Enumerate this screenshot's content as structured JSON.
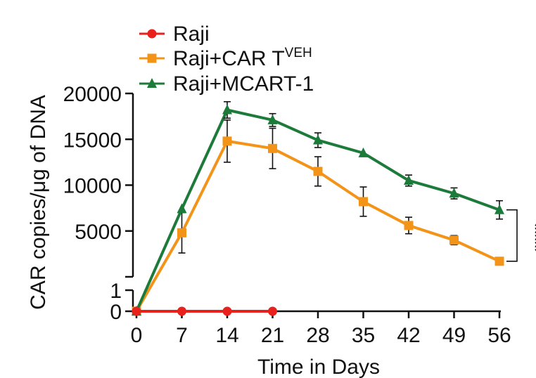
{
  "chart_data": {
    "type": "line",
    "title": "",
    "xlabel": "Time in Days",
    "ylabel": "CAR copies/μg of DNA",
    "x": [
      0,
      7,
      14,
      21,
      28,
      35,
      42,
      49,
      56
    ],
    "xticks": [
      "0",
      "7",
      "14",
      "21",
      "28",
      "35",
      "42",
      "49",
      "56"
    ],
    "yticks_upper": [
      "5000",
      "10000",
      "15000",
      "20000"
    ],
    "yticks_lower": [
      "0",
      "1"
    ],
    "ylim_upper": [
      0,
      20000
    ],
    "ylim_lower": [
      0,
      1
    ],
    "annotation": "****",
    "series": [
      {
        "name": "Raji",
        "name_base": "Raji",
        "name_sup": "",
        "color": "#e8211d",
        "marker": "circle",
        "x": [
          0,
          7,
          14,
          21
        ],
        "values": [
          0,
          0,
          0,
          0
        ],
        "errors": [
          0,
          0,
          0,
          0
        ]
      },
      {
        "name": "Raji+CAR T VEH",
        "name_base": "Raji+CAR T",
        "name_sup": "VEH",
        "color": "#f39419",
        "marker": "square",
        "x": [
          0,
          7,
          14,
          21,
          28,
          35,
          42,
          49,
          56
        ],
        "values": [
          0,
          4800,
          14800,
          14000,
          11500,
          8200,
          5600,
          4000,
          1700
        ],
        "errors": [
          0,
          2200,
          2300,
          2200,
          1600,
          1600,
          900,
          500,
          400
        ]
      },
      {
        "name": "Raji+MCART-1",
        "name_base": "Raji+MCART-1",
        "name_sup": "",
        "color": "#1c7a3a",
        "marker": "triangle",
        "x": [
          0,
          7,
          14,
          21,
          28,
          35,
          42,
          49,
          56
        ],
        "values": [
          0,
          7400,
          18200,
          17100,
          14900,
          13500,
          10500,
          9100,
          7300
        ],
        "errors": [
          0,
          0,
          900,
          700,
          800,
          0,
          600,
          600,
          1000
        ]
      }
    ]
  }
}
